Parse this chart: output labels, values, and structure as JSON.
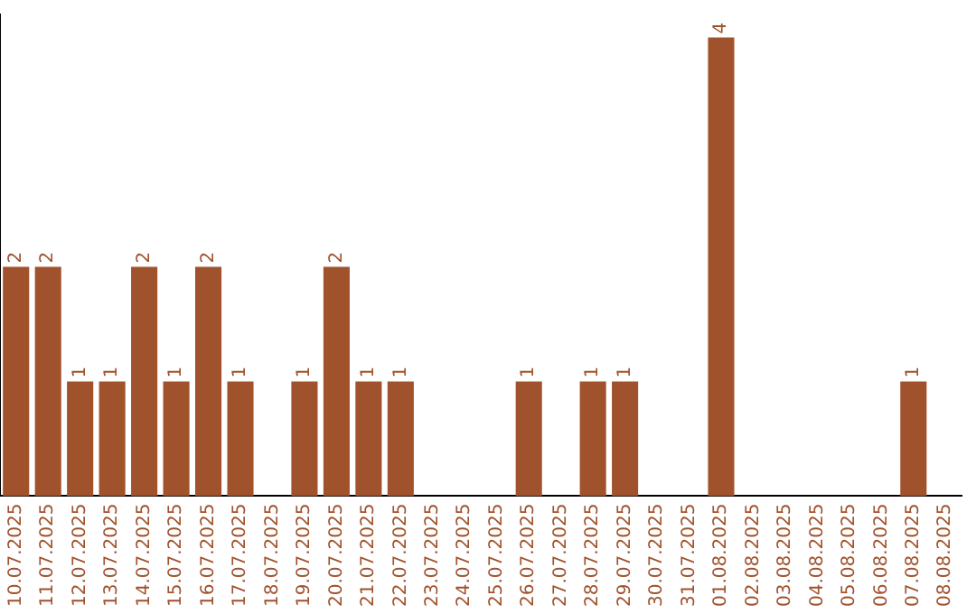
{
  "chart_data": {
    "type": "bar",
    "categories": [
      "10.07.2025",
      "11.07.2025",
      "12.07.2025",
      "13.07.2025",
      "14.07.2025",
      "15.07.2025",
      "16.07.2025",
      "17.07.2025",
      "18.07.2025",
      "19.07.2025",
      "20.07.2025",
      "21.07.2025",
      "22.07.2025",
      "23.07.2025",
      "24.07.2025",
      "25.07.2025",
      "26.07.2025",
      "27.07.2025",
      "28.07.2025",
      "29.07.2025",
      "30.07.2025",
      "31.07.2025",
      "01.08.2025",
      "02.08.2025",
      "03.08.2025",
      "04.08.2025",
      "05.08.2025",
      "06.08.2025",
      "07.08.2025",
      "08.08.2025"
    ],
    "values": [
      2,
      2,
      1,
      1,
      2,
      1,
      2,
      1,
      0,
      1,
      2,
      1,
      1,
      0,
      0,
      0,
      1,
      0,
      1,
      1,
      0,
      0,
      4,
      0,
      0,
      0,
      0,
      0,
      1,
      0
    ],
    "value_labels": [
      "2",
      "2",
      "1",
      "1",
      "2",
      "1",
      "2",
      "1",
      null,
      "1",
      "2",
      "1",
      "1",
      null,
      null,
      null,
      "1",
      null,
      "1",
      "1",
      null,
      null,
      "4",
      null,
      null,
      null,
      null,
      null,
      "1",
      null
    ],
    "color": "#a0522d",
    "ylim": [
      0,
      4.2
    ],
    "grid": false,
    "legend": false,
    "tick_labels": "x"
  }
}
